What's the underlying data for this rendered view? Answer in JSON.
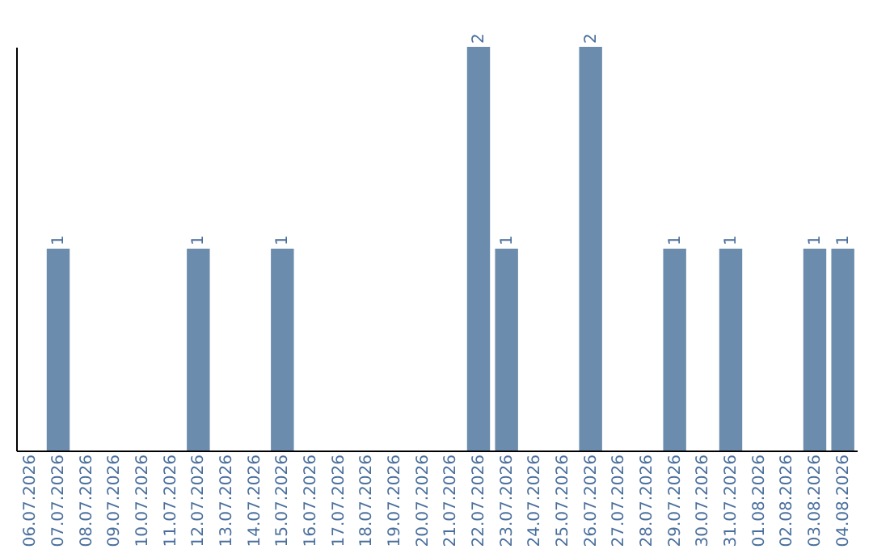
{
  "chart_data": {
    "type": "bar",
    "categories": [
      "06.07.2026",
      "07.07.2026",
      "08.07.2026",
      "09.07.2026",
      "10.07.2026",
      "11.07.2026",
      "12.07.2026",
      "13.07.2026",
      "14.07.2026",
      "15.07.2026",
      "16.07.2026",
      "17.07.2026",
      "18.07.2026",
      "19.07.2026",
      "20.07.2026",
      "21.07.2026",
      "22.07.2026",
      "23.07.2026",
      "24.07.2026",
      "25.07.2026",
      "26.07.2026",
      "27.07.2026",
      "28.07.2026",
      "29.07.2026",
      "30.07.2026",
      "31.07.2026",
      "01.08.2026",
      "02.08.2026",
      "03.08.2026",
      "04.08.2026"
    ],
    "values": [
      0,
      1,
      0,
      0,
      0,
      0,
      1,
      0,
      0,
      1,
      0,
      0,
      0,
      0,
      0,
      0,
      2,
      1,
      0,
      0,
      2,
      0,
      0,
      1,
      0,
      1,
      0,
      0,
      1,
      1
    ],
    "value_labels": [
      null,
      "1",
      null,
      null,
      null,
      null,
      "1",
      null,
      null,
      "1",
      null,
      null,
      null,
      null,
      null,
      null,
      "2",
      "1",
      null,
      null,
      "2",
      null,
      null,
      "1",
      null,
      "1",
      null,
      null,
      "1",
      "1"
    ],
    "color": "#6b8cac",
    "grid": false,
    "tick_labels": "x"
  }
}
